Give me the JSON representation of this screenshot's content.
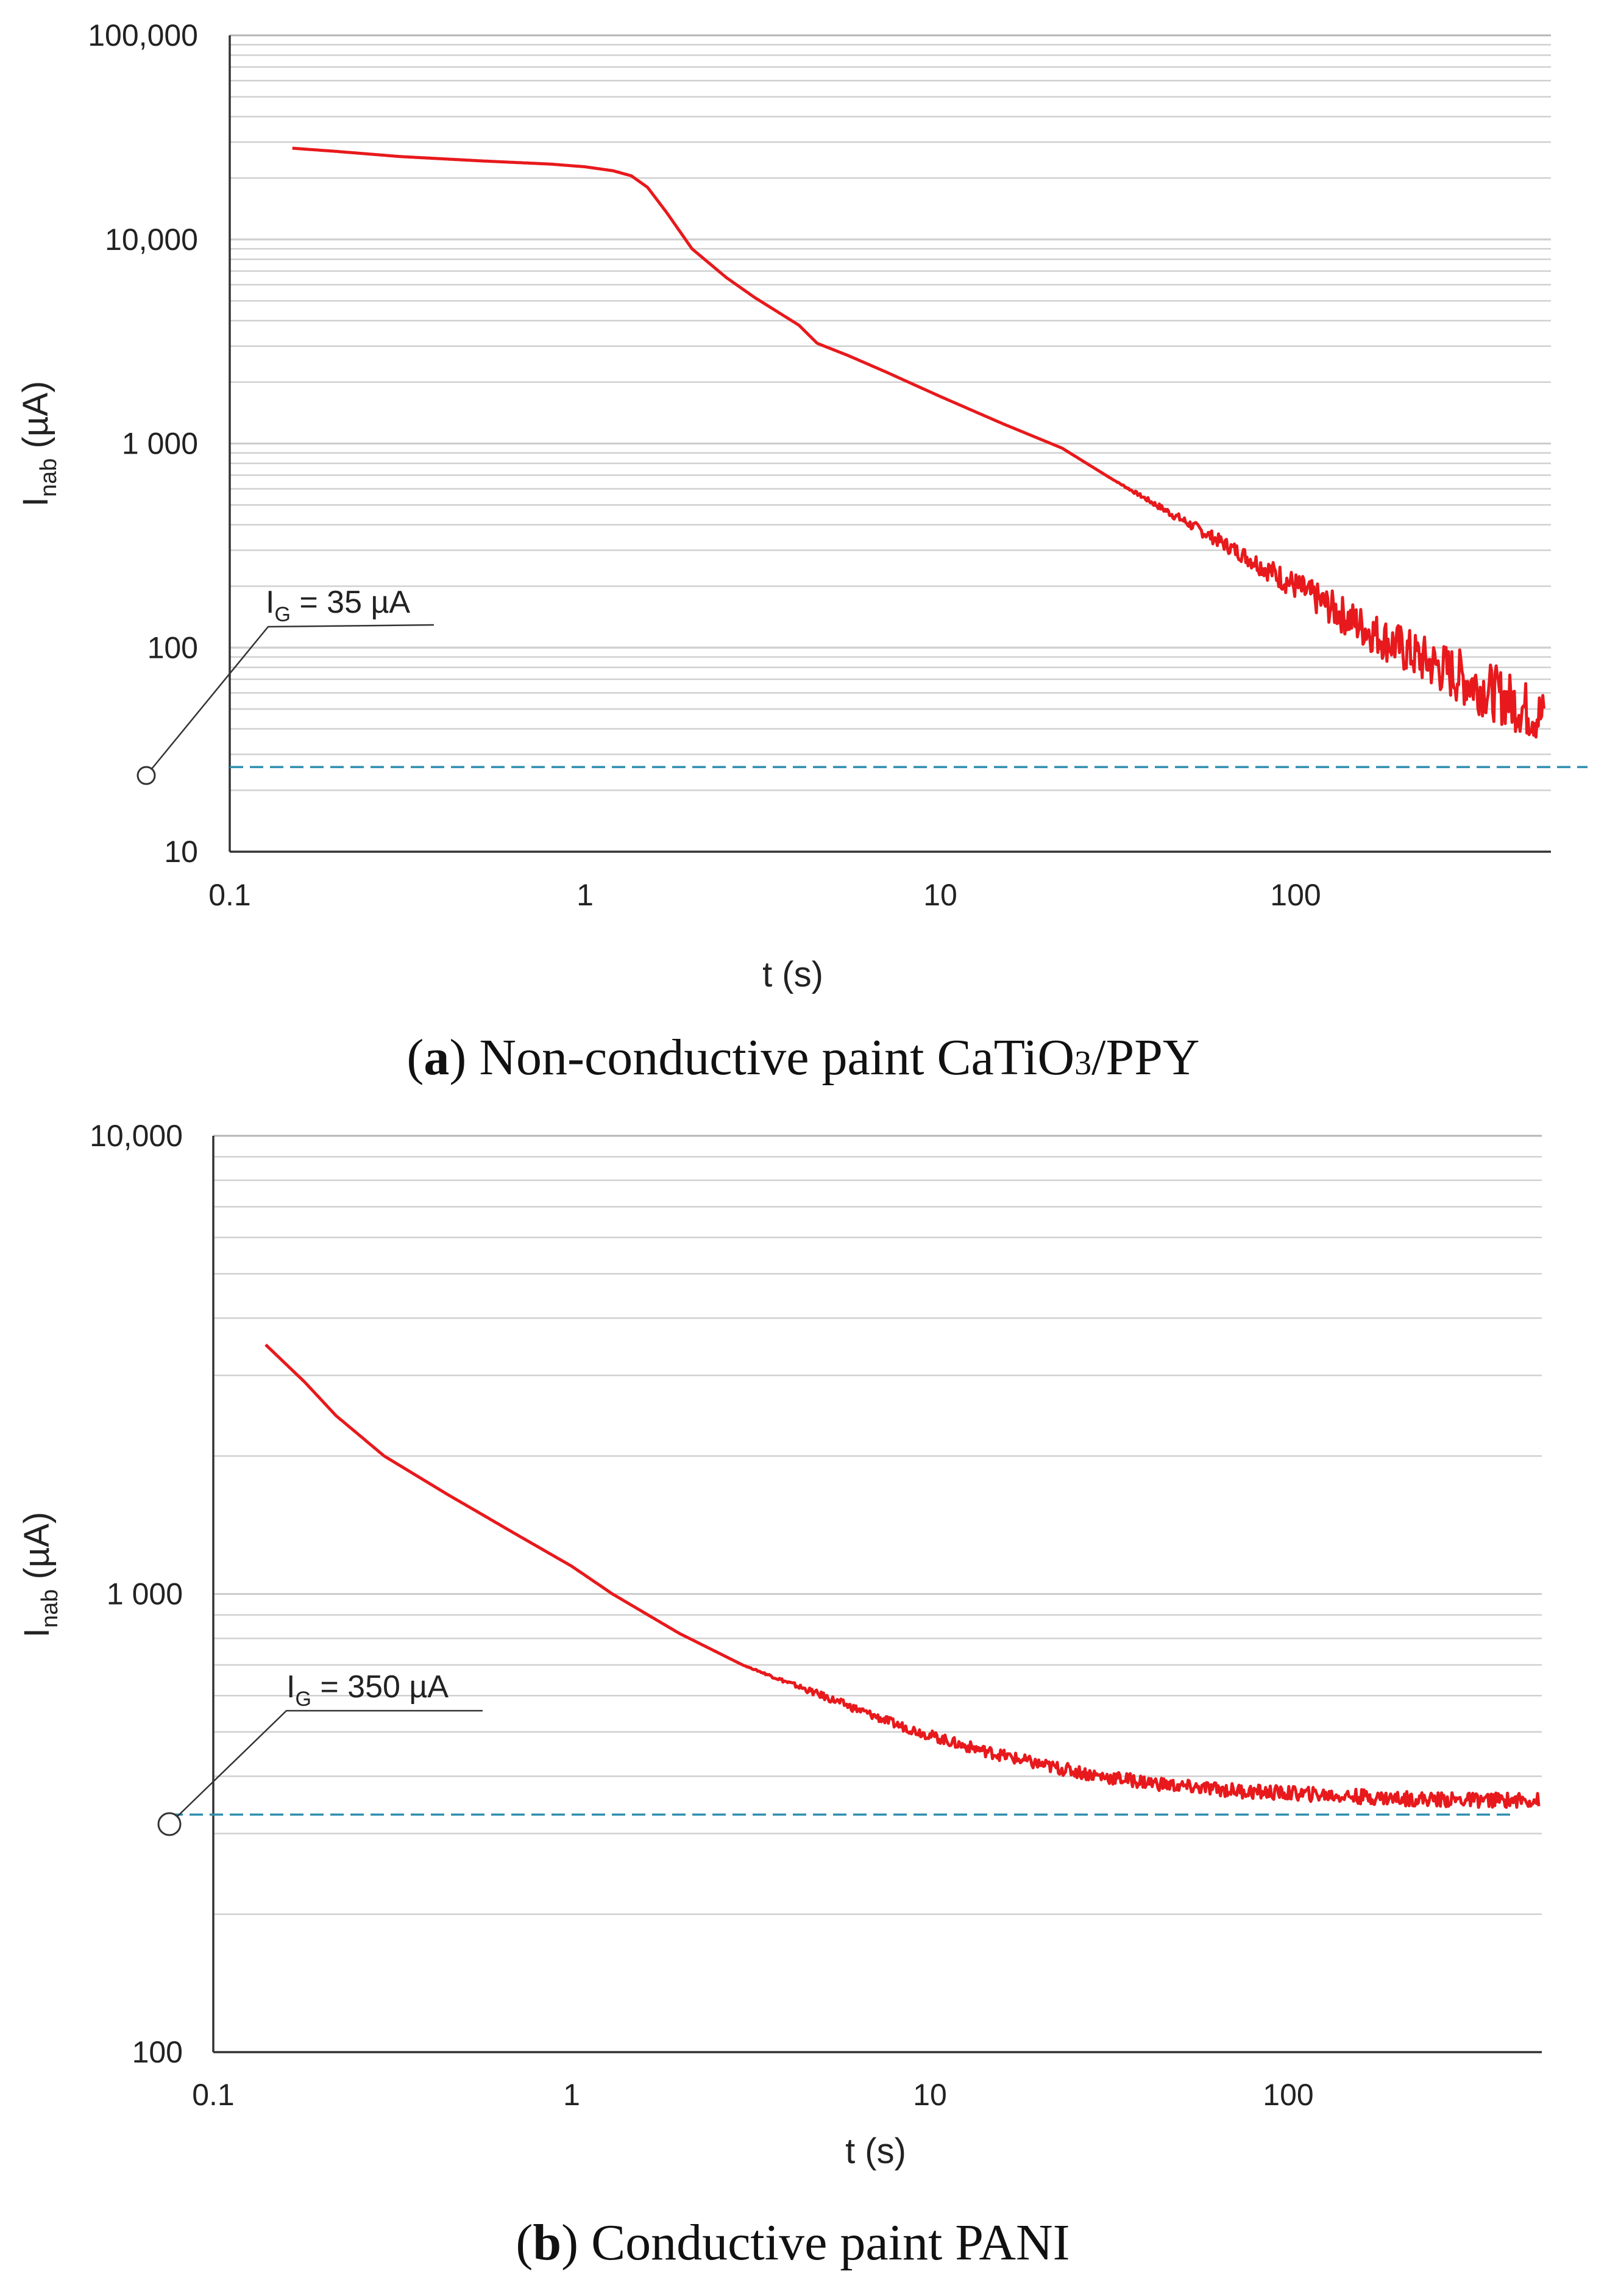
{
  "chart_data": [
    {
      "id": "a",
      "type": "line",
      "xscale": "log",
      "yscale": "log",
      "xlim": [
        0.1,
        500
      ],
      "ylim": [
        10,
        100000
      ],
      "xticks": [
        "0.1",
        "1",
        "10",
        "100"
      ],
      "yticks": [
        "10",
        "100",
        "1 000",
        "10,000",
        "100,000"
      ],
      "xlabel": "t (s)",
      "ylabel": {
        "main": "I",
        "sub": "nab",
        "tail": " (µA)"
      },
      "annotation": {
        "main": "I",
        "sub": "G",
        "tail": " = 35 µA"
      },
      "reference_value": 26,
      "caption": {
        "letter": "a",
        "text": " Non-conductive paint CaTiO",
        "subscript": "3",
        "tail": "/PPY"
      },
      "series": [
        {
          "name": "Inab",
          "x": [
            0.15,
            0.2,
            0.3,
            0.5,
            0.8,
            1.0,
            1.2,
            1.35,
            1.5,
            1.7,
            2.0,
            2.5,
            3.0,
            4.0,
            4.5,
            5.5,
            7,
            10,
            15,
            22,
            30,
            45,
            70,
            100,
            150,
            220,
            300,
            400,
            500
          ],
          "y": [
            28000,
            27000,
            25500,
            24300,
            23400,
            22700,
            21700,
            20500,
            18000,
            13500,
            9000,
            6500,
            5200,
            3800,
            3100,
            2700,
            2250,
            1700,
            1250,
            950,
            680,
            450,
            290,
            200,
            130,
            90,
            70,
            55,
            45
          ],
          "noise": [
            0,
            0,
            0,
            0,
            0,
            0,
            0,
            0,
            0,
            0,
            0,
            0,
            0,
            0,
            0,
            0,
            0,
            0,
            0,
            0,
            0,
            0.02,
            0.04,
            0.07,
            0.1,
            0.12,
            0.14,
            0.14,
            0.14
          ]
        }
      ]
    },
    {
      "id": "b",
      "type": "line",
      "xscale": "log",
      "yscale": "log",
      "xlim": [
        0.1,
        500
      ],
      "ylim": [
        100,
        10000
      ],
      "xticks": [
        "0.1",
        "1",
        "10",
        "100"
      ],
      "yticks": [
        "100",
        "1 000",
        "10,000"
      ],
      "xlabel": "t (s)",
      "ylabel": {
        "main": "I",
        "sub": "nab",
        "tail": " (µA)"
      },
      "annotation": {
        "main": "I",
        "sub": "G",
        "tail": " = 350 µA"
      },
      "reference_value": 330,
      "caption": {
        "letter": "b",
        "text": " Conductive paint PANI",
        "subscript": "",
        "tail": ""
      },
      "series": [
        {
          "name": "Inab",
          "x": [
            0.14,
            0.18,
            0.22,
            0.3,
            0.45,
            0.7,
            1.0,
            1.3,
            2.0,
            3.0,
            5.0,
            8.0,
            12,
            20,
            30,
            50,
            80,
            120,
            200,
            300,
            500
          ],
          "y": [
            3500,
            2900,
            2450,
            2000,
            1650,
            1350,
            1150,
            1000,
            820,
            700,
            600,
            520,
            470,
            425,
            400,
            380,
            370,
            365,
            358,
            355,
            355
          ],
          "noise": [
            0,
            0,
            0,
            0,
            0,
            0,
            0,
            0,
            0,
            0,
            0.008,
            0.01,
            0.012,
            0.014,
            0.015,
            0.015,
            0.016,
            0.016,
            0.016,
            0.016,
            0.016
          ]
        }
      ]
    }
  ]
}
